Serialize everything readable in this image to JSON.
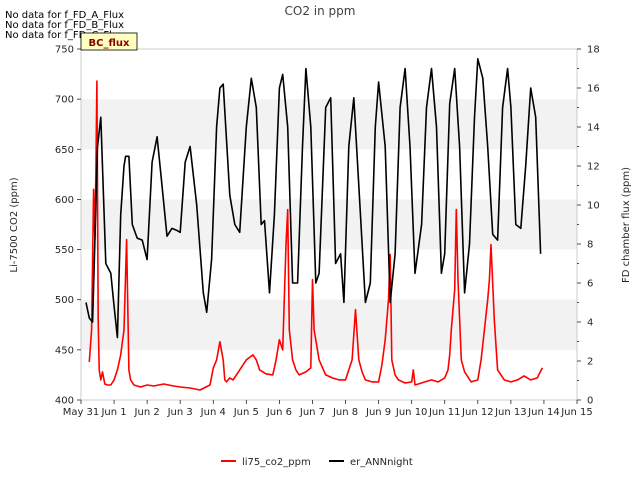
{
  "chart_data": {
    "type": "line",
    "title": "CO2 in ppm",
    "notes": [
      "No data for f_FD_A_Flux",
      "No data for f_FD_B_Flux",
      "No data for f_FD_C_Flux"
    ],
    "badge": "BC_flux",
    "ylabel_left": "Li-7500 CO2 (ppm)",
    "ylabel_right": "FD chamber flux (ppm)",
    "xlim": [
      0,
      15
    ],
    "ylim_left": [
      400,
      750
    ],
    "ylim_right": [
      0,
      18
    ],
    "x_ticks": [
      0,
      1,
      2,
      3,
      4,
      5,
      6,
      7,
      8,
      9,
      10,
      11,
      12,
      13,
      14,
      15
    ],
    "x_tick_labels": [
      "May 31",
      "Jun 1",
      "Jun 2",
      "Jun 3",
      "Jun 4",
      "Jun 5",
      "Jun 6",
      "Jun 7",
      "Jun 8",
      "Jun 9",
      "Jun 10",
      "Jun 11",
      "Jun 12",
      "Jun 13",
      "Jun 14",
      "Jun 15"
    ],
    "y_ticks_left": [
      400,
      450,
      500,
      550,
      600,
      650,
      700,
      750
    ],
    "y_ticks_right": [
      0,
      2,
      4,
      6,
      8,
      10,
      12,
      14,
      16,
      18
    ],
    "grid_bands": true,
    "legend_position": "bottom-center",
    "series": [
      {
        "name": "li75_co2_ppm",
        "axis": "left",
        "color": "#ff0000",
        "x": [
          0.25,
          0.32,
          0.38,
          0.42,
          0.45,
          0.48,
          0.52,
          0.55,
          0.6,
          0.65,
          0.72,
          0.8,
          0.9,
          1.0,
          1.1,
          1.2,
          1.3,
          1.38,
          1.45,
          1.5,
          1.6,
          1.8,
          2.0,
          2.2,
          2.5,
          2.8,
          3.0,
          3.3,
          3.6,
          3.9,
          4.0,
          4.1,
          4.2,
          4.3,
          4.35,
          4.4,
          4.5,
          4.6,
          4.8,
          5.0,
          5.2,
          5.3,
          5.4,
          5.6,
          5.8,
          5.9,
          6.0,
          6.1,
          6.2,
          6.25,
          6.3,
          6.4,
          6.5,
          6.6,
          6.8,
          6.95,
          7.0,
          7.05,
          7.2,
          7.4,
          7.6,
          7.8,
          8.0,
          8.1,
          8.2,
          8.3,
          8.4,
          8.5,
          8.6,
          8.8,
          9.0,
          9.1,
          9.2,
          9.3,
          9.35,
          9.4,
          9.5,
          9.6,
          9.8,
          10.0,
          10.05,
          10.1,
          10.2,
          10.4,
          10.6,
          10.8,
          11.0,
          11.1,
          11.15,
          11.2,
          11.3,
          11.35,
          11.4,
          11.5,
          11.6,
          11.8,
          12.0,
          12.1,
          12.2,
          12.3,
          12.35,
          12.4,
          12.5,
          12.6,
          12.8,
          13.0,
          13.2,
          13.4,
          13.6,
          13.8,
          13.95
        ],
        "values": [
          438,
          470,
          610,
          560,
          630,
          718,
          480,
          430,
          420,
          428,
          416,
          415,
          415,
          420,
          430,
          445,
          470,
          560,
          430,
          420,
          415,
          413,
          415,
          414,
          416,
          414,
          413,
          412,
          410,
          415,
          432,
          440,
          458,
          440,
          420,
          418,
          422,
          420,
          430,
          440,
          445,
          440,
          430,
          426,
          425,
          440,
          460,
          450,
          555,
          590,
          470,
          440,
          430,
          425,
          428,
          432,
          520,
          470,
          440,
          425,
          422,
          420,
          420,
          430,
          440,
          490,
          440,
          428,
          420,
          418,
          418,
          435,
          460,
          500,
          545,
          440,
          425,
          420,
          417,
          418,
          430,
          415,
          416,
          418,
          420,
          418,
          422,
          430,
          445,
          470,
          510,
          590,
          520,
          440,
          428,
          418,
          420,
          440,
          470,
          500,
          520,
          555,
          480,
          430,
          420,
          418,
          420,
          424,
          420,
          422,
          432
        ]
      },
      {
        "name": "er_ANNnight",
        "axis": "right",
        "color": "#000000",
        "x": [
          0.15,
          0.25,
          0.35,
          0.5,
          0.6,
          0.75,
          0.9,
          1.0,
          1.1,
          1.2,
          1.3,
          1.35,
          1.45,
          1.55,
          1.7,
          1.85,
          2.0,
          2.15,
          2.3,
          2.45,
          2.6,
          2.75,
          2.9,
          3.0,
          3.15,
          3.3,
          3.5,
          3.7,
          3.8,
          3.95,
          4.1,
          4.2,
          4.3,
          4.5,
          4.65,
          4.8,
          5.0,
          5.15,
          5.3,
          5.45,
          5.55,
          5.7,
          5.85,
          6.0,
          6.1,
          6.25,
          6.4,
          6.55,
          6.7,
          6.8,
          6.95,
          7.1,
          7.2,
          7.4,
          7.55,
          7.7,
          7.85,
          7.95,
          8.1,
          8.25,
          8.4,
          8.6,
          8.75,
          8.9,
          9.0,
          9.2,
          9.35,
          9.5,
          9.65,
          9.8,
          9.95,
          10.1,
          10.3,
          10.45,
          10.6,
          10.75,
          10.9,
          11.0,
          11.15,
          11.3,
          11.45,
          11.6,
          11.75,
          11.9,
          12.0,
          12.15,
          12.3,
          12.45,
          12.6,
          12.75,
          12.9,
          13.0,
          13.15,
          13.3,
          13.45,
          13.6,
          13.75,
          13.9
        ],
        "values": [
          5,
          4.2,
          4,
          13,
          14.5,
          7,
          6.5,
          4.8,
          3.2,
          9.5,
          12,
          12.5,
          12.5,
          9,
          8.3,
          8.2,
          7.2,
          12.2,
          13.5,
          11,
          8.4,
          8.8,
          8.7,
          8.6,
          12.2,
          13,
          10,
          5.5,
          4.5,
          7.2,
          14,
          16,
          16.2,
          10.5,
          9,
          8.6,
          14,
          16.5,
          15,
          9,
          9.2,
          5.5,
          9.5,
          16,
          16.7,
          14,
          6,
          6,
          13,
          17,
          14,
          6,
          6.5,
          15,
          15.5,
          7,
          7.5,
          5,
          13,
          15.5,
          11,
          5,
          6,
          14,
          16.3,
          13,
          5,
          7.5,
          15,
          17,
          13,
          6.5,
          9,
          15,
          17,
          14,
          6.5,
          7.5,
          15.2,
          17,
          13,
          5.5,
          8,
          14.5,
          17.5,
          16.5,
          13,
          8.5,
          8.2,
          15,
          17,
          15,
          9,
          8.8,
          12,
          16,
          14.5,
          7.5
        ]
      }
    ]
  }
}
